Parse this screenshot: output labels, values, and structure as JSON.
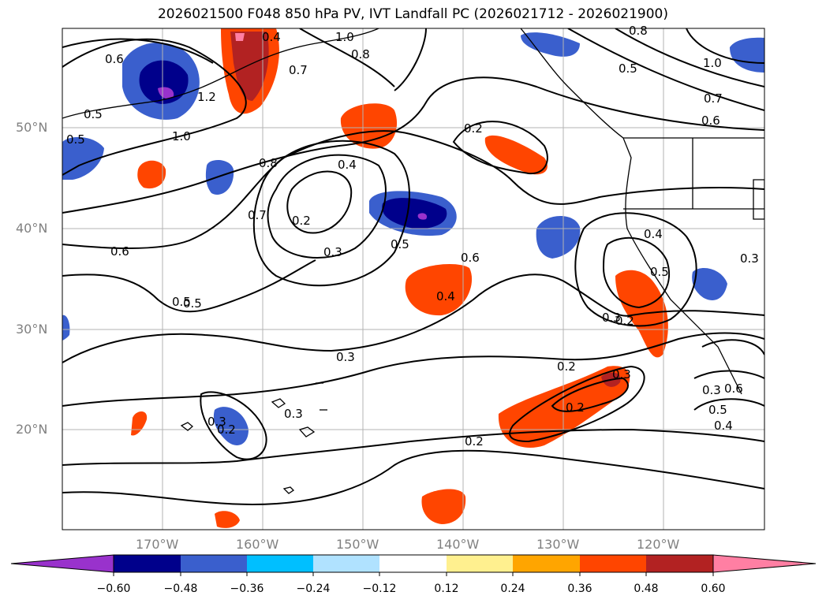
{
  "title": "2026021500 F048 850 hPa PV, IVT Landfall PC (2026021712 - 2026021900)",
  "longitude_labels": [
    "170°W",
    "160°W",
    "150°W",
    "140°W",
    "130°W",
    "120°W"
  ],
  "latitude_labels": [
    "50°N",
    "40°N",
    "30°N",
    "20°N"
  ],
  "colorbar": {
    "colors": [
      "#9932cc",
      "#00008b",
      "#3a5fcd",
      "#00bfff",
      "#b0e2ff",
      "#ffffff",
      "#fff08f",
      "#ffa500",
      "#ff4500",
      "#b22222",
      "#ff7fa3"
    ],
    "ticks": [
      "−0.60",
      "−0.48",
      "−0.36",
      "−0.24",
      "−0.12",
      "0.12",
      "0.24",
      "0.36",
      "0.48",
      "0.60"
    ]
  },
  "contour_labels": [
    "0.6",
    "1.2",
    "0.5",
    "1.0",
    "0.8",
    "0.7",
    "0.6",
    "0.5",
    "0.4",
    "0.2",
    "0.3",
    "0.5",
    "0.6",
    "0.4",
    "0.3",
    "0.2",
    "0.3",
    "0.2",
    "0.4",
    "0.5",
    "0.3",
    "0.2",
    "0.3",
    "0.2",
    "0.3",
    "0.6",
    "0.5",
    "0.4",
    "0.3",
    "0.5",
    "1.0",
    "0.7",
    "0.6",
    "0.8",
    "1.0",
    "0.8",
    "0.7",
    "0.4",
    "0.3",
    "0.2",
    "0.2",
    "0.5",
    "0.5"
  ],
  "colors": {
    "land_outline": "#000000",
    "grid": "#b3b3b3",
    "contour": "#000000",
    "axis_text": "#808080"
  }
}
